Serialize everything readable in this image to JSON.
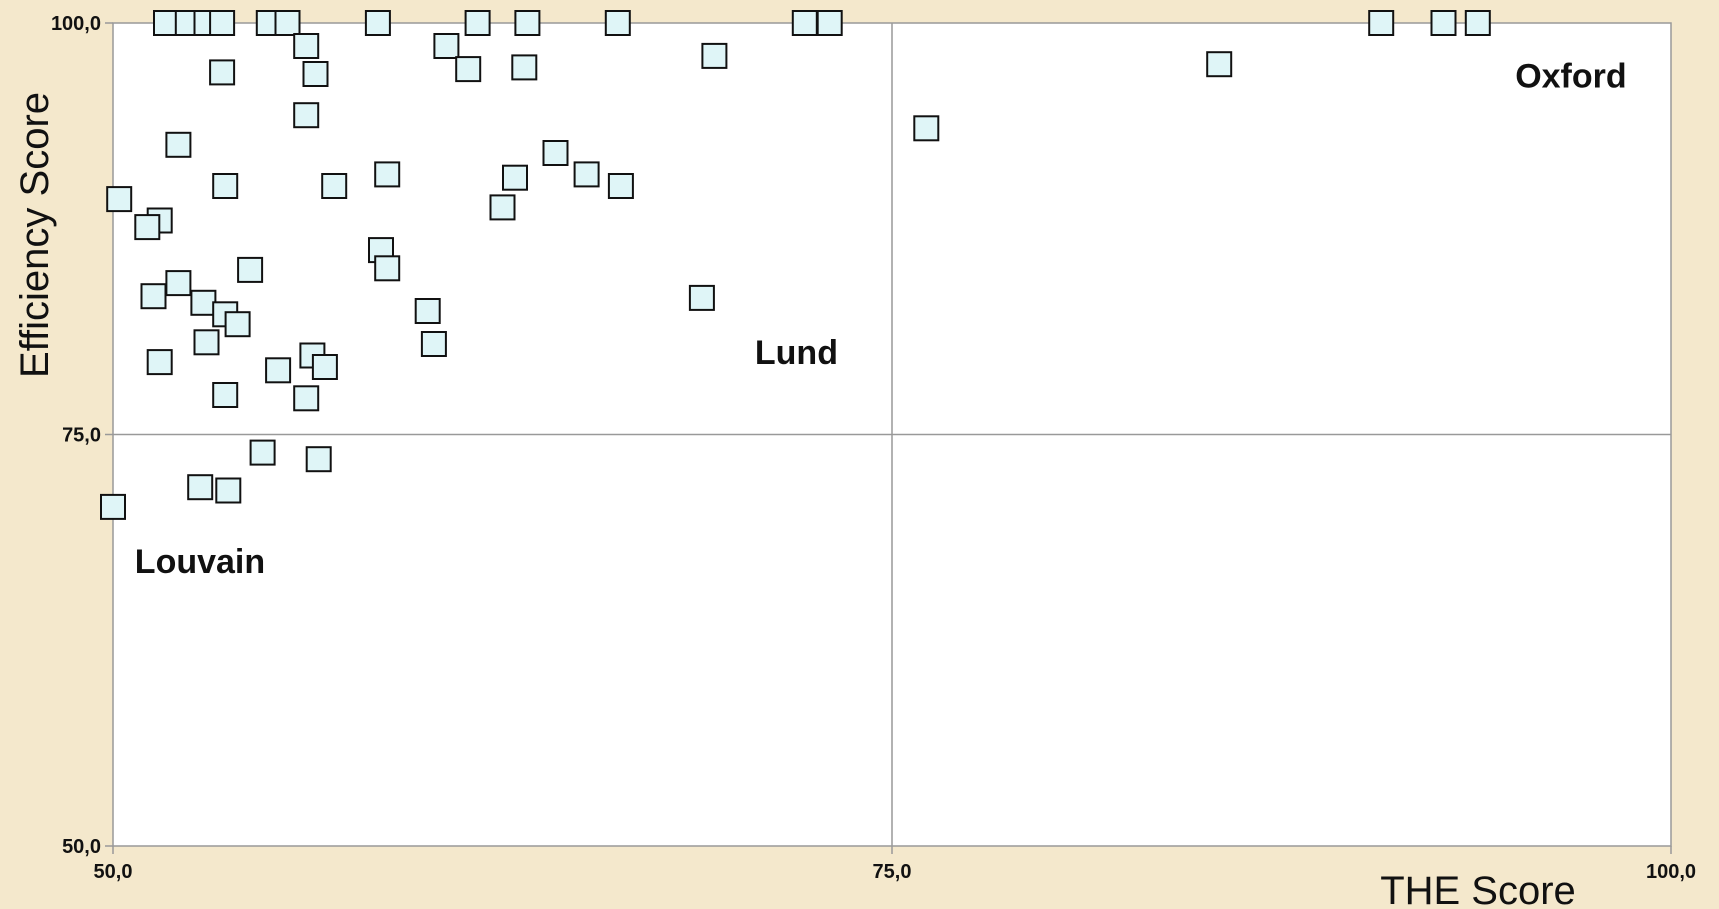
{
  "chart_data": {
    "type": "scatter",
    "xlabel": "THE Score",
    "ylabel": "Efficiency Score",
    "xlim": [
      50,
      100
    ],
    "ylim": [
      50,
      100
    ],
    "x_ticks": [
      "50,0",
      "75,0",
      "100,0"
    ],
    "y_ticks": [
      "100,0",
      "75,0",
      "50,0"
    ],
    "grid": "quadrant lines at 75",
    "legend": "none",
    "colors": {
      "background": "#f4e8cc",
      "plot": "#ffffff",
      "marker_fill": "#dff5f7",
      "marker_stroke": "#111111",
      "grid": "#999999"
    },
    "annotations": [
      {
        "text": "Oxford",
        "x": 95,
        "y": 96.8
      },
      {
        "text": "Lund",
        "x": 70.6,
        "y": 80
      },
      {
        "text": "Louvain",
        "x": 50.7,
        "y": 67.3
      }
    ],
    "points": [
      {
        "x": 51.7,
        "y": 100
      },
      {
        "x": 52.4,
        "y": 100
      },
      {
        "x": 53.0,
        "y": 100
      },
      {
        "x": 53.5,
        "y": 100
      },
      {
        "x": 55.0,
        "y": 100
      },
      {
        "x": 55.6,
        "y": 100
      },
      {
        "x": 58.5,
        "y": 100
      },
      {
        "x": 61.7,
        "y": 100
      },
      {
        "x": 63.3,
        "y": 100
      },
      {
        "x": 66.2,
        "y": 100
      },
      {
        "x": 72.2,
        "y": 100
      },
      {
        "x": 73.0,
        "y": 100
      },
      {
        "x": 90.7,
        "y": 100
      },
      {
        "x": 92.7,
        "y": 100
      },
      {
        "x": 93.8,
        "y": 100
      },
      {
        "x": 60.7,
        "y": 98.6
      },
      {
        "x": 56.2,
        "y": 98.6
      },
      {
        "x": 69.3,
        "y": 98.0
      },
      {
        "x": 53.5,
        "y": 97.0
      },
      {
        "x": 56.5,
        "y": 96.9
      },
      {
        "x": 61.4,
        "y": 97.2
      },
      {
        "x": 63.2,
        "y": 97.3
      },
      {
        "x": 85.5,
        "y": 97.5
      },
      {
        "x": 56.2,
        "y": 94.4
      },
      {
        "x": 76.1,
        "y": 93.6
      },
      {
        "x": 52.1,
        "y": 92.6
      },
      {
        "x": 64.2,
        "y": 92.1
      },
      {
        "x": 58.8,
        "y": 90.8
      },
      {
        "x": 62.9,
        "y": 90.6
      },
      {
        "x": 65.2,
        "y": 90.8
      },
      {
        "x": 53.6,
        "y": 90.1
      },
      {
        "x": 57.1,
        "y": 90.1
      },
      {
        "x": 66.3,
        "y": 90.1
      },
      {
        "x": 50.2,
        "y": 89.3
      },
      {
        "x": 62.5,
        "y": 88.8
      },
      {
        "x": 51.5,
        "y": 88.0
      },
      {
        "x": 51.1,
        "y": 87.6
      },
      {
        "x": 58.6,
        "y": 86.2
      },
      {
        "x": 58.8,
        "y": 85.1
      },
      {
        "x": 54.4,
        "y": 85.0
      },
      {
        "x": 52.1,
        "y": 84.2
      },
      {
        "x": 51.3,
        "y": 83.4
      },
      {
        "x": 52.9,
        "y": 83.0
      },
      {
        "x": 68.9,
        "y": 83.3
      },
      {
        "x": 60.1,
        "y": 82.5
      },
      {
        "x": 53.6,
        "y": 82.3
      },
      {
        "x": 54.0,
        "y": 81.7
      },
      {
        "x": 53.0,
        "y": 80.6
      },
      {
        "x": 60.3,
        "y": 80.5
      },
      {
        "x": 56.4,
        "y": 79.8
      },
      {
        "x": 51.5,
        "y": 79.4
      },
      {
        "x": 55.3,
        "y": 78.9
      },
      {
        "x": 56.8,
        "y": 79.1
      },
      {
        "x": 53.6,
        "y": 77.4
      },
      {
        "x": 56.2,
        "y": 77.2
      },
      {
        "x": 54.8,
        "y": 73.9
      },
      {
        "x": 56.6,
        "y": 73.5
      },
      {
        "x": 52.8,
        "y": 71.8
      },
      {
        "x": 53.7,
        "y": 71.6
      },
      {
        "x": 50.0,
        "y": 70.6
      }
    ]
  }
}
